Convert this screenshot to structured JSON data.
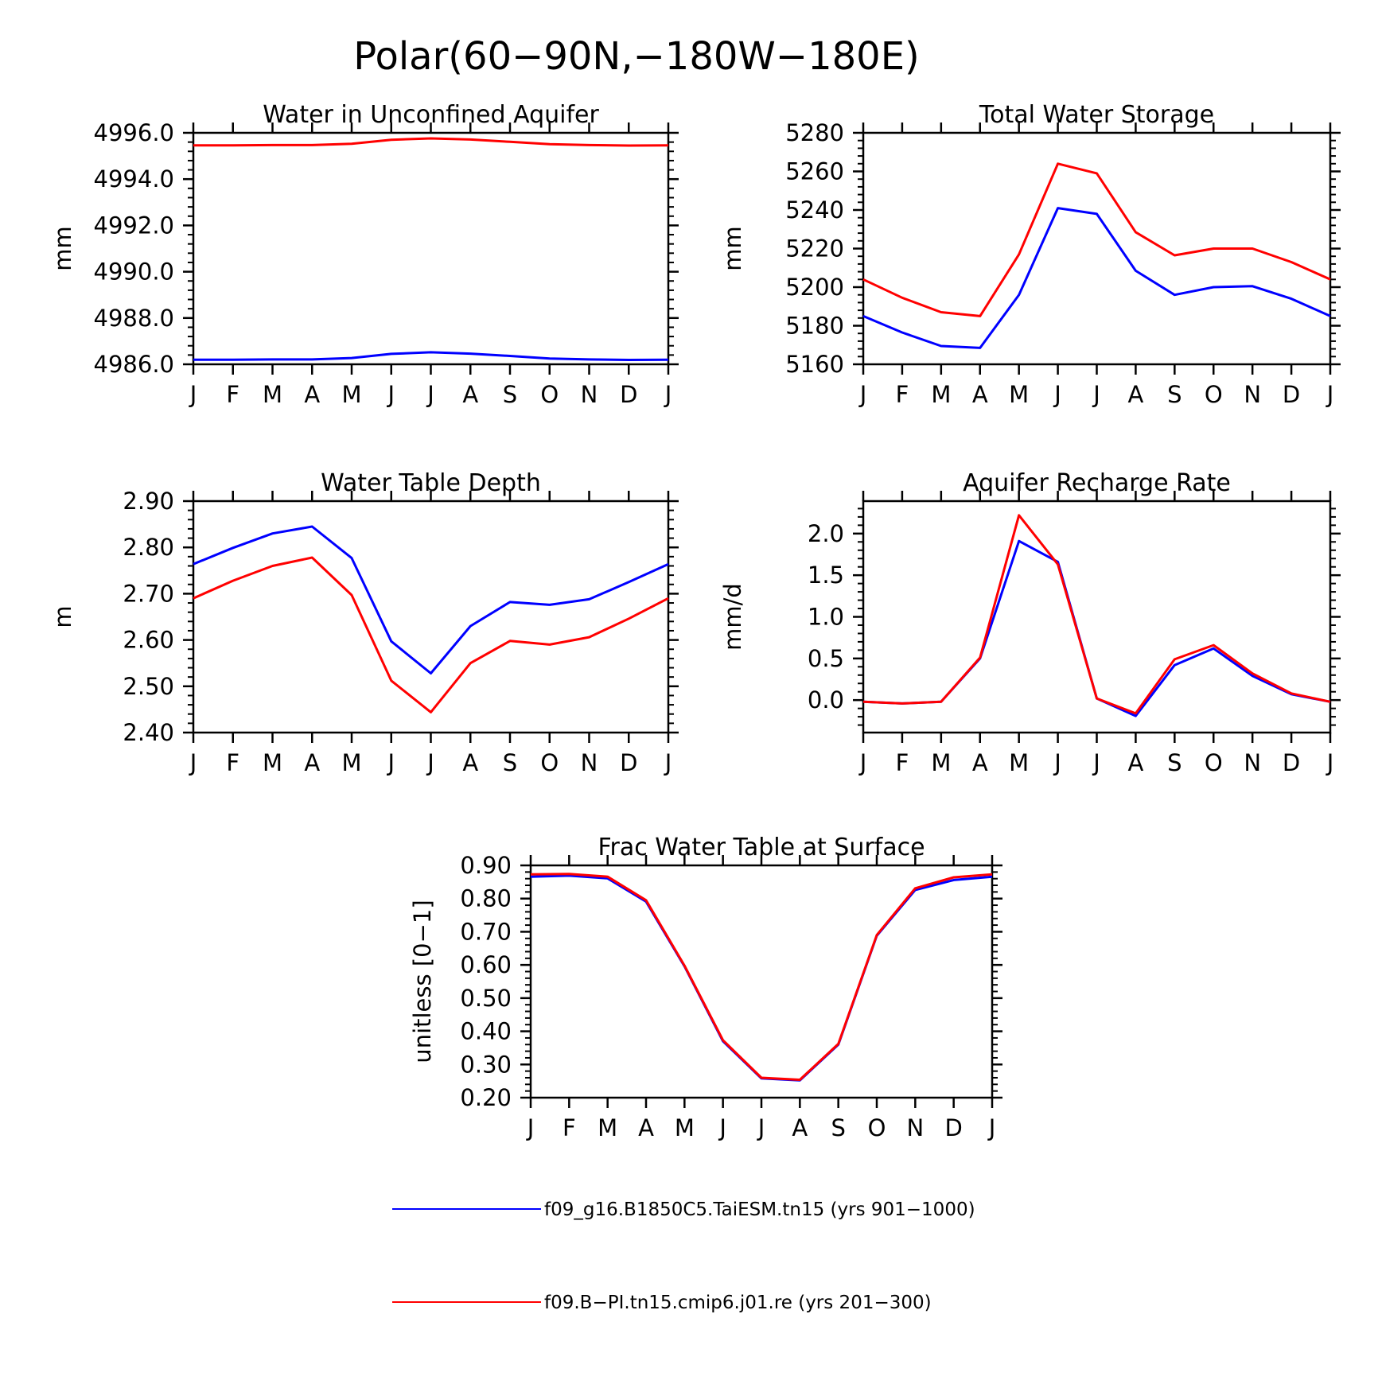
{
  "figure": {
    "title": "Polar(60−90N,−180W−180E)"
  },
  "colors": {
    "series_1": "#0000ff",
    "series_2": "#ff0000"
  },
  "legend": [
    {
      "label": "f09_g16.B1850C5.TaiESM.tn15 (yrs 901−1000)",
      "color": "#0000ff"
    },
    {
      "label": "f09.B−PI.tn15.cmip6.j01.re (yrs 201−300)",
      "color": "#ff0000"
    }
  ],
  "chart_data": [
    {
      "type": "line",
      "title": "Water in Unconfined Aquifer",
      "ylabel": "mm",
      "xlabel": "",
      "categories": [
        "J",
        "F",
        "M",
        "A",
        "M",
        "J",
        "J",
        "A",
        "S",
        "O",
        "N",
        "D",
        "J"
      ],
      "ylim": [
        4986.0,
        4996.0
      ],
      "yticks": [
        4986.0,
        4988.0,
        4990.0,
        4992.0,
        4994.0,
        4996.0
      ],
      "ytick_labels": [
        "4986.0",
        "4988.0",
        "4990.0",
        "4992.0",
        "4994.0",
        "4996.0"
      ],
      "series": [
        {
          "color": "#0000ff",
          "values": [
            4986.2,
            4986.2,
            4986.21,
            4986.21,
            4986.27,
            4986.45,
            4986.52,
            4986.46,
            4986.36,
            4986.25,
            4986.21,
            4986.19,
            4986.2
          ]
        },
        {
          "color": "#ff0000",
          "values": [
            4995.46,
            4995.46,
            4995.47,
            4995.47,
            4995.53,
            4995.7,
            4995.76,
            4995.71,
            4995.61,
            4995.51,
            4995.47,
            4995.45,
            4995.46
          ]
        }
      ]
    },
    {
      "type": "line",
      "title": "Total Water Storage",
      "ylabel": "mm",
      "xlabel": "",
      "categories": [
        "J",
        "F",
        "M",
        "A",
        "M",
        "J",
        "J",
        "A",
        "S",
        "O",
        "N",
        "D",
        "J"
      ],
      "ylim": [
        5160,
        5280
      ],
      "yticks": [
        5160,
        5180,
        5200,
        5220,
        5240,
        5260,
        5280
      ],
      "ytick_labels": [
        "5160",
        "5180",
        "5200",
        "5220",
        "5240",
        "5260",
        "5280"
      ],
      "series": [
        {
          "color": "#0000ff",
          "values": [
            5185,
            5176.5,
            5169.5,
            5168.5,
            5196,
            5241,
            5238,
            5208.5,
            5196,
            5200,
            5200.5,
            5194,
            5185
          ]
        },
        {
          "color": "#ff0000",
          "values": [
            5204,
            5194.5,
            5187,
            5185,
            5217,
            5264,
            5259,
            5228.5,
            5216.5,
            5220,
            5220,
            5213,
            5204
          ]
        }
      ]
    },
    {
      "type": "line",
      "title": "Water Table Depth",
      "ylabel": "m",
      "xlabel": "",
      "categories": [
        "J",
        "F",
        "M",
        "A",
        "M",
        "J",
        "J",
        "A",
        "S",
        "O",
        "N",
        "D",
        "J"
      ],
      "ylim": [
        2.4,
        2.9
      ],
      "yticks": [
        2.4,
        2.5,
        2.6,
        2.7,
        2.8,
        2.9
      ],
      "ytick_labels": [
        "2.40",
        "2.50",
        "2.60",
        "2.70",
        "2.80",
        "2.90"
      ],
      "series": [
        {
          "color": "#0000ff",
          "values": [
            2.764,
            2.799,
            2.83,
            2.845,
            2.777,
            2.597,
            2.528,
            2.63,
            2.682,
            2.676,
            2.688,
            2.725,
            2.764
          ]
        },
        {
          "color": "#ff0000",
          "values": [
            2.69,
            2.728,
            2.76,
            2.778,
            2.697,
            2.512,
            2.444,
            2.55,
            2.598,
            2.59,
            2.606,
            2.646,
            2.69
          ]
        }
      ]
    },
    {
      "type": "line",
      "title": "Aquifer Recharge Rate",
      "ylabel": "mm/d",
      "xlabel": "",
      "categories": [
        "J",
        "F",
        "M",
        "A",
        "M",
        "J",
        "J",
        "A",
        "S",
        "O",
        "N",
        "D",
        "J"
      ],
      "ylim": [
        -0.39,
        2.39
      ],
      "yticks": [
        0.0,
        0.5,
        1.0,
        1.5,
        2.0
      ],
      "ytick_labels": [
        "0.0",
        "0.5",
        "1.0",
        "1.5",
        "2.0"
      ],
      "series": [
        {
          "color": "#0000ff",
          "values": [
            -0.02,
            -0.04,
            -0.02,
            0.5,
            1.91,
            1.66,
            0.02,
            -0.19,
            0.42,
            0.62,
            0.29,
            0.07,
            -0.02
          ]
        },
        {
          "color": "#ff0000",
          "values": [
            -0.02,
            -0.04,
            -0.02,
            0.51,
            2.22,
            1.63,
            0.02,
            -0.16,
            0.49,
            0.66,
            0.32,
            0.08,
            -0.02
          ]
        }
      ]
    },
    {
      "type": "line",
      "title": "Frac Water Table at Surface",
      "ylabel": "unitless [0−1]",
      "xlabel": "",
      "categories": [
        "J",
        "F",
        "M",
        "A",
        "M",
        "J",
        "J",
        "A",
        "S",
        "O",
        "N",
        "D",
        "J"
      ],
      "ylim": [
        0.2,
        0.9
      ],
      "yticks": [
        0.2,
        0.3,
        0.4,
        0.5,
        0.6,
        0.7,
        0.8,
        0.9
      ],
      "ytick_labels": [
        "0.20",
        "0.30",
        "0.40",
        "0.50",
        "0.60",
        "0.70",
        "0.80",
        "0.90"
      ],
      "series": [
        {
          "color": "#0000ff",
          "values": [
            0.866,
            0.869,
            0.861,
            0.791,
            0.596,
            0.37,
            0.258,
            0.252,
            0.36,
            0.688,
            0.826,
            0.856,
            0.866
          ]
        },
        {
          "color": "#ff0000",
          "values": [
            0.873,
            0.874,
            0.866,
            0.795,
            0.598,
            0.373,
            0.26,
            0.254,
            0.362,
            0.69,
            0.831,
            0.864,
            0.873
          ]
        }
      ]
    }
  ]
}
